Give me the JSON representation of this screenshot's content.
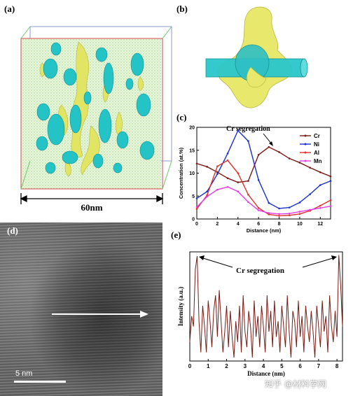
{
  "panels": {
    "a": {
      "label": "(a)",
      "scale_text": "60nm"
    },
    "b": {
      "label": "(b)"
    },
    "c": {
      "label": "(c)",
      "annotation": "Cr segregation"
    },
    "d": {
      "label": "(d)",
      "scale_text": "5 nm"
    },
    "e": {
      "label": "(e)",
      "annotation": "Cr segregation"
    }
  },
  "watermark": "知乎 @材料学网",
  "colors": {
    "cr": "#7a1a14",
    "ni": "#1a2fd0",
    "al": "#e0302a",
    "mn": "#e63ce6",
    "cyan": "#22c6c8",
    "yellow": "#ecee6a"
  },
  "chart_data": [
    {
      "type": "line",
      "xlabel": "Distance (nm)",
      "ylabel": "Concentration (at.%)",
      "xlim": [
        0,
        13
      ],
      "ylim": [
        0,
        20
      ],
      "xticks": [
        0,
        2,
        4,
        6,
        8,
        10,
        12
      ],
      "yticks": [
        0,
        5,
        10,
        15,
        20
      ],
      "legend_position": "top-right",
      "series": [
        {
          "name": "Cr",
          "color": "#7a1a14",
          "x": [
            0,
            1,
            2,
            3,
            4,
            5,
            6,
            7,
            8,
            9,
            10,
            11,
            12,
            13
          ],
          "y": [
            12.1,
            11.4,
            10.2,
            8.9,
            8.0,
            8.3,
            14.0,
            15.7,
            14.6,
            13.2,
            12.3,
            11.2,
            10.2,
            9.3
          ]
        },
        {
          "name": "Ni",
          "color": "#1a2fd0",
          "x": [
            0,
            1,
            2,
            3,
            4,
            5,
            6,
            7,
            8,
            9,
            10,
            11,
            12,
            13
          ],
          "y": [
            4.5,
            6.0,
            9.8,
            14.3,
            19.3,
            17.0,
            8.5,
            3.5,
            2.3,
            2.5,
            3.6,
            5.4,
            7.4,
            8.3
          ]
        },
        {
          "name": "Al",
          "color": "#e0302a",
          "x": [
            0,
            1,
            2,
            3,
            4,
            5,
            6,
            7,
            8,
            9,
            10,
            11,
            12,
            13
          ],
          "y": [
            2.2,
            5.2,
            11.5,
            12.8,
            10.0,
            5.3,
            2.4,
            1.0,
            0.7,
            0.8,
            1.1,
            1.8,
            2.9,
            4.1
          ]
        },
        {
          "name": "Mn",
          "color": "#e63ce6",
          "x": [
            0,
            1,
            2,
            3,
            4,
            5,
            6,
            7,
            8,
            9,
            10,
            11,
            12,
            13
          ],
          "y": [
            2.6,
            4.9,
            6.4,
            7.0,
            6.0,
            3.7,
            1.9,
            1.3,
            1.1,
            1.2,
            1.6,
            2.0,
            2.4,
            2.8
          ]
        }
      ]
    },
    {
      "type": "line",
      "xlabel": "Distance (nm)",
      "ylabel": "Intensity (a.u.)",
      "xlim": [
        0,
        8.3
      ],
      "xticks": [
        0,
        1,
        2,
        3,
        4,
        5,
        6,
        7,
        8
      ],
      "series": [
        {
          "color": "#7a1a14",
          "x": [
            0,
            0.1,
            0.2,
            0.3,
            0.4,
            0.5,
            0.6,
            0.7,
            0.8,
            0.9,
            1.0,
            1.1,
            1.2,
            1.3,
            1.4,
            1.5,
            1.6,
            1.7,
            1.8,
            1.9,
            2.0,
            2.1,
            2.2,
            2.3,
            2.4,
            2.5,
            2.6,
            2.7,
            2.8,
            2.9,
            3.0,
            3.1,
            3.2,
            3.3,
            3.4,
            3.5,
            3.6,
            3.7,
            3.8,
            3.9,
            4.0,
            4.1,
            4.2,
            4.3,
            4.4,
            4.5,
            4.6,
            4.7,
            4.8,
            4.9,
            5.0,
            5.1,
            5.2,
            5.3,
            5.4,
            5.5,
            5.6,
            5.7,
            5.8,
            5.9,
            6.0,
            6.1,
            6.2,
            6.3,
            6.4,
            6.5,
            6.6,
            6.7,
            6.8,
            6.9,
            7.0,
            7.1,
            7.2,
            7.3,
            7.4,
            7.5,
            7.6,
            7.7,
            7.8,
            7.9,
            8.0,
            8.1,
            8.2,
            8.3
          ],
          "y": [
            0.15,
            0.4,
            0.3,
            0.85,
            0.98,
            0.35,
            0.05,
            0.5,
            0.3,
            0.05,
            0.55,
            0.35,
            0.1,
            0.45,
            0.6,
            0.2,
            0.65,
            0.35,
            0.05,
            0.25,
            0.5,
            0.1,
            0.45,
            0.2,
            0.0,
            0.35,
            0.15,
            0.5,
            0.05,
            0.6,
            0.25,
            0.1,
            0.45,
            0.3,
            0.0,
            0.55,
            0.2,
            0.4,
            0.1,
            0.5,
            0.3,
            0.05,
            0.6,
            0.25,
            0.45,
            0.1,
            0.55,
            0.2,
            0.35,
            0.05,
            0.5,
            0.3,
            0.1,
            0.6,
            0.25,
            0.0,
            0.45,
            0.35,
            0.1,
            0.55,
            0.2,
            0.4,
            0.05,
            0.5,
            0.3,
            0.15,
            0.45,
            0.25,
            0.0,
            0.5,
            0.3,
            0.1,
            0.55,
            0.25,
            0.4,
            0.05,
            0.6,
            0.3,
            0.15,
            0.45,
            0.2,
            0.99,
            0.7,
            0.3
          ]
        }
      ]
    }
  ]
}
